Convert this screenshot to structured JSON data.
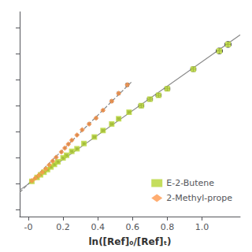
{
  "chart_data": {
    "type": "scatter",
    "xlabel": "ln([Ref]₀/[Ref]ₜ)",
    "xlim": [
      -0.05,
      1.22
    ],
    "ylim": [
      -0.25,
      1.32
    ],
    "xticks": [
      {
        "value": 0.0,
        "label": "-0"
      },
      0.2,
      0.4,
      0.6,
      0.8,
      {
        "value": 1.0,
        "label": "1.0"
      }
    ],
    "yticks": [
      -0.2,
      0,
      0.2,
      0.4,
      0.6,
      0.8,
      1.0,
      1.2
    ],
    "tick_labels": "x",
    "grid": false,
    "legend": "lower right",
    "series": [
      {
        "name": "E-2-Butene",
        "type": "scatter",
        "marker": "square",
        "x": [
          0.02,
          0.05,
          0.07,
          0.09,
          0.11,
          0.13,
          0.15,
          0.17,
          0.2,
          0.22,
          0.25,
          0.28,
          0.32,
          0.38,
          0.43,
          0.48,
          0.52,
          0.58,
          0.65,
          0.7,
          0.75,
          0.8,
          0.95,
          1.1,
          1.15
        ],
        "values": [
          0.02,
          0.05,
          0.07,
          0.09,
          0.11,
          0.13,
          0.15,
          0.17,
          0.2,
          0.22,
          0.25,
          0.27,
          0.31,
          0.36,
          0.41,
          0.46,
          0.5,
          0.55,
          0.6,
          0.65,
          0.68,
          0.73,
          0.88,
          1.02,
          1.07
        ],
        "xerr": [
          0.005,
          0.005,
          0.005,
          0.005,
          0.005,
          0.005,
          0.005,
          0.005,
          0.005,
          0.005,
          0.005,
          0.005,
          0.005,
          0.008,
          0.008,
          0.008,
          0.008,
          0.008,
          0.015,
          0.015,
          0.015,
          0.015,
          0.015,
          0.018,
          0.018
        ],
        "yerr": [
          0.005,
          0.005,
          0.005,
          0.005,
          0.005,
          0.005,
          0.005,
          0.005,
          0.005,
          0.005,
          0.005,
          0.005,
          0.005,
          0.008,
          0.008,
          0.008,
          0.008,
          0.008,
          0.015,
          0.015,
          0.015,
          0.015,
          0.018,
          0.022,
          0.022
        ]
      },
      {
        "name": "2-Methyl-prope",
        "type": "scatter",
        "marker": "diamond",
        "x": [
          0.02,
          0.04,
          0.06,
          0.08,
          0.1,
          0.12,
          0.14,
          0.16,
          0.19,
          0.21,
          0.23,
          0.25,
          0.28,
          0.31,
          0.35,
          0.39,
          0.43,
          0.48,
          0.52,
          0.57
        ],
        "values": [
          0.025,
          0.045,
          0.065,
          0.09,
          0.115,
          0.145,
          0.175,
          0.205,
          0.245,
          0.275,
          0.305,
          0.335,
          0.375,
          0.415,
          0.46,
          0.505,
          0.565,
          0.635,
          0.695,
          0.76
        ],
        "xerr": [
          0.003,
          0.003,
          0.003,
          0.003,
          0.003,
          0.003,
          0.003,
          0.003,
          0.003,
          0.003,
          0.003,
          0.003,
          0.003,
          0.003,
          0.005,
          0.005,
          0.005,
          0.007,
          0.007,
          0.008
        ],
        "yerr": [
          0.003,
          0.003,
          0.003,
          0.003,
          0.003,
          0.004,
          0.004,
          0.004,
          0.005,
          0.005,
          0.005,
          0.005,
          0.006,
          0.006,
          0.007,
          0.007,
          0.008,
          0.009,
          0.009,
          0.012
        ]
      },
      {
        "type": "line",
        "line_style": "solid",
        "x": [
          -0.05,
          1.22
        ],
        "values": [
          -0.047,
          1.143
        ]
      },
      {
        "type": "line",
        "line_style": "dashed",
        "x": [
          -0.05,
          0.6
        ],
        "values": [
          -0.065,
          0.79
        ]
      }
    ]
  }
}
